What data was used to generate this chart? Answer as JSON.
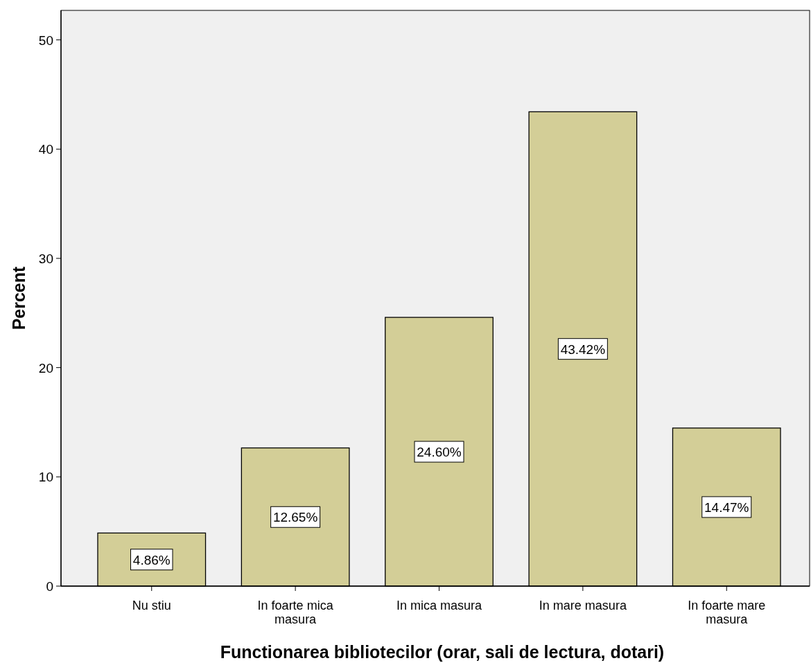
{
  "chart_data": {
    "type": "bar",
    "xlabel": "Functionarea bibliotecilor (orar, sali de lectura, dotari)",
    "ylabel": "Percent",
    "categories": [
      "Nu stiu",
      "In foarte mica masura",
      "In mica masura",
      "In mare masura",
      "In foarte mare masura"
    ],
    "values": [
      4.86,
      12.65,
      24.6,
      43.42,
      14.47
    ],
    "value_labels": [
      "4.86%",
      "12.65%",
      "24.60%",
      "43.42%",
      "14.47%"
    ],
    "color": "#d3ce97",
    "ylim": [
      0,
      52.7
    ],
    "yticks": [
      0,
      10,
      20,
      30,
      40,
      50
    ],
    "grid": false
  }
}
